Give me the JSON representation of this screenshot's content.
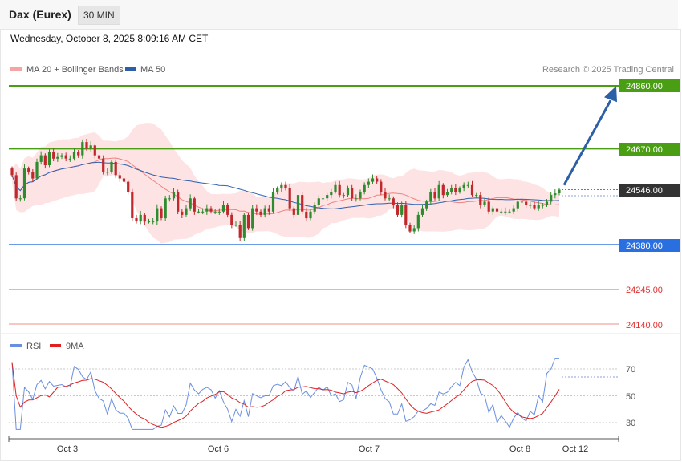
{
  "header": {
    "instrument": "Dax (Eurex)",
    "timeframe": "30 MIN"
  },
  "datetime": "Wednesday, October 8, 2025 8:09:16 AM CET",
  "legend": {
    "ma20": "MA 20 + Bollinger Bands",
    "ma50": "MA 50",
    "credit": "Research © 2025 Trading Central",
    "rsi": "RSI",
    "rsi_ma": "9MA"
  },
  "colors": {
    "up": "#2e8b2e",
    "down": "#c0282b",
    "bollinger_fill": "#fde3e3",
    "ma20": "#f08080",
    "ma50": "#3060b0",
    "resistance": "#4a9e14",
    "support": "#3a78e0",
    "target": "#f5a3a3",
    "arrow": "#2d5fa6",
    "rsi": "#6a8fe0",
    "rsi_ma": "#e02020"
  },
  "levels": [
    {
      "value": "24860.00",
      "kind": "resistance"
    },
    {
      "value": "24670.00",
      "kind": "resistance"
    },
    {
      "value": "24546.00",
      "kind": "last"
    },
    {
      "value": "24380.00",
      "kind": "support"
    },
    {
      "value": "24245.00",
      "kind": "target"
    },
    {
      "value": "24140.00",
      "kind": "target"
    }
  ],
  "rsi_ticks": [
    "70",
    "50",
    "30"
  ],
  "x_ticks": [
    "Oct 3",
    "Oct 6",
    "Oct 7",
    "Oct 8",
    "Oct 12"
  ],
  "chart_data": {
    "type": "candlestick",
    "ylim": [
      24100,
      24920
    ],
    "close": [
      24590,
      24520,
      24520,
      24610,
      24600,
      24580,
      24630,
      24650,
      24620,
      24660,
      24640,
      24645,
      24650,
      24640,
      24640,
      24660,
      24650,
      24690,
      24670,
      24680,
      24650,
      24640,
      24600,
      24600,
      24630,
      24590,
      24580,
      24570,
      24540,
      24460,
      24450,
      24470,
      24450,
      24450,
      24450,
      24490,
      24460,
      24520,
      24520,
      24540,
      24480,
      24470,
      24490,
      24520,
      24480,
      24480,
      24480,
      24490,
      24480,
      24480,
      24480,
      24500,
      24470,
      24440,
      24440,
      24400,
      24470,
      24430,
      24490,
      24480,
      24470,
      24490,
      24480,
      24540,
      24550,
      24560,
      24550,
      24490,
      24470,
      24530,
      24480,
      24460,
      24480,
      24500,
      24520,
      24520,
      24530,
      24540,
      24560,
      24530,
      24530,
      24550,
      24520,
      24520,
      24540,
      24560,
      24570,
      24580,
      24570,
      24540,
      24520,
      24520,
      24500,
      24470,
      24500,
      24440,
      24420,
      24430,
      24470,
      24490,
      24510,
      24540,
      24520,
      24560,
      24530,
      24540,
      24550,
      24540,
      24550,
      24560,
      24560,
      24530,
      24530,
      24500,
      24510,
      24480,
      24490,
      24480,
      24480,
      24480,
      24480,
      24490,
      24510,
      24510,
      24500,
      24500,
      24490,
      24500,
      24500,
      24510,
      24530,
      24535,
      24546
    ],
    "levels": {
      "resistance": [
        24860,
        24670
      ],
      "last": 24546,
      "support": 24380,
      "targets": [
        24245,
        24140
      ]
    },
    "rsi": {
      "ylim": [
        20,
        80
      ],
      "ticks": [
        70,
        50,
        30
      ],
      "last": 64
    }
  }
}
